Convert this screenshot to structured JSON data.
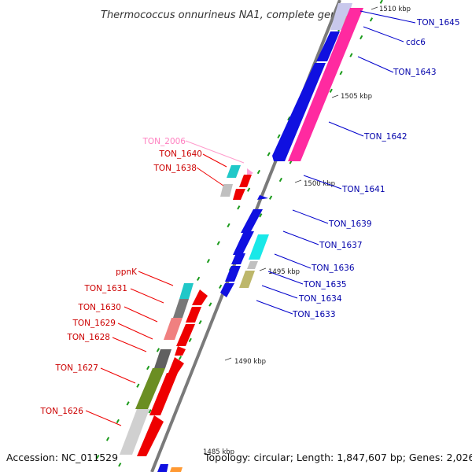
{
  "title": "Thermococcus onnurineus NA1, complete genome",
  "footer": {
    "accession": "Accession: NC_011529",
    "topology": "Topology: circular; Length: 1,847,607 bp; Genes: 2,026"
  },
  "scale_ticks": [
    "1510 kbp",
    "1505 kbp",
    "1500 kbp",
    "1495 kbp",
    "1490 kbp",
    "1485 kbp"
  ],
  "colors": {
    "forward_strand": "#1010e0",
    "reverse_strand": "#ee0000",
    "rna": "#ff2aa0",
    "axis": "#7a7a7a",
    "dot": "#1a9a1a",
    "label_forward": "#0000aa",
    "label_reverse": "#cc0000",
    "label_rna": "#ff80c0"
  },
  "genes_forward": [
    {
      "label": "TON_1645",
      "icon": "blue-gene-arrow"
    },
    {
      "label": "cdc6",
      "icon": "blue-gene-arrow"
    },
    {
      "label": "TON_1643",
      "icon": "blue-gene-arrow"
    },
    {
      "label": "TON_1642",
      "icon": "blue-gene-arrow"
    },
    {
      "label": "TON_1641",
      "icon": "blue-gene-arrow"
    },
    {
      "label": "TON_1639",
      "icon": "blue-gene-arrow"
    },
    {
      "label": "TON_1637",
      "icon": "blue-gene-arrow"
    },
    {
      "label": "TON_1636",
      "icon": "blue-gene-arrow"
    },
    {
      "label": "TON_1635",
      "icon": "blue-gene-arrow"
    },
    {
      "label": "TON_1634",
      "icon": "blue-gene-arrow"
    },
    {
      "label": "TON_1633",
      "icon": "blue-gene-arrow"
    }
  ],
  "genes_reverse": [
    {
      "label": "TON_2006",
      "icon": "pink-rna-arrow"
    },
    {
      "label": "TON_1640",
      "icon": "red-gene-arrow"
    },
    {
      "label": "TON_1638",
      "icon": "red-gene-arrow"
    },
    {
      "label": "ppnK",
      "icon": "red-gene-arrow"
    },
    {
      "label": "TON_1631",
      "icon": "red-gene-arrow"
    },
    {
      "label": "TON_1630",
      "icon": "red-gene-arrow"
    },
    {
      "label": "TON_1629",
      "icon": "red-gene-arrow"
    },
    {
      "label": "TON_1628",
      "icon": "red-gene-arrow"
    },
    {
      "label": "TON_1627",
      "icon": "red-gene-arrow"
    },
    {
      "label": "TON_1626",
      "icon": "red-gene-arrow"
    }
  ]
}
